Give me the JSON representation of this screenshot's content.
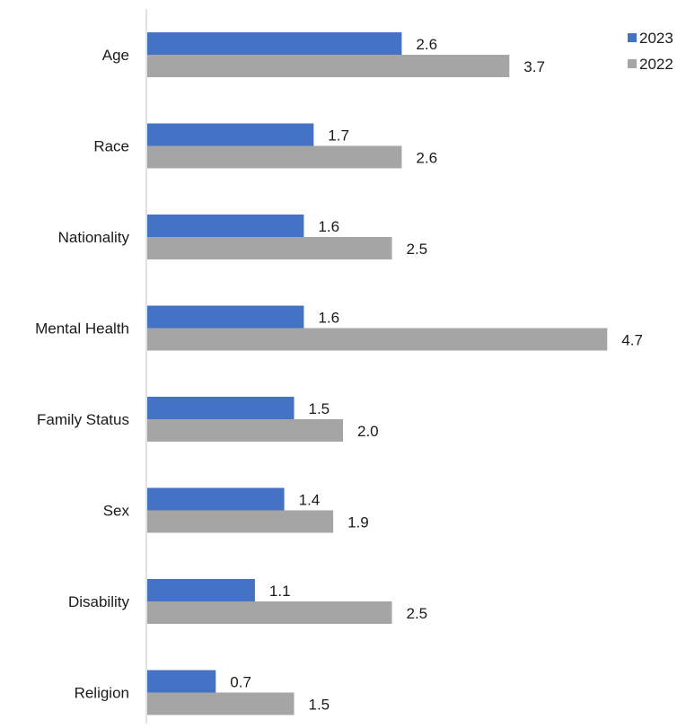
{
  "chart_data": {
    "type": "bar",
    "orientation": "horizontal",
    "categories": [
      "Age",
      "Race",
      "Nationality",
      "Mental Health",
      "Family Status",
      "Sex",
      "Disability",
      "Religion"
    ],
    "series": [
      {
        "name": "2023",
        "color": "#4472c4",
        "values": [
          2.6,
          1.7,
          1.6,
          1.6,
          1.5,
          1.4,
          1.1,
          0.7
        ],
        "labels": [
          "2.6",
          "1.7",
          "1.6",
          "1.6",
          "1.5",
          "1.4",
          "1.1",
          "0.7"
        ]
      },
      {
        "name": "2022",
        "color": "#a5a5a5",
        "values": [
          3.7,
          2.6,
          2.5,
          4.7,
          2.0,
          1.9,
          2.5,
          1.5
        ],
        "labels": [
          "3.7",
          "2.6",
          "2.5",
          "4.7",
          "2.0",
          "1.9",
          "2.5",
          "1.5"
        ]
      }
    ],
    "xlim": [
      0,
      5
    ],
    "grid": false,
    "legend": "top-right",
    "axis_color": "#d9d9d9"
  }
}
